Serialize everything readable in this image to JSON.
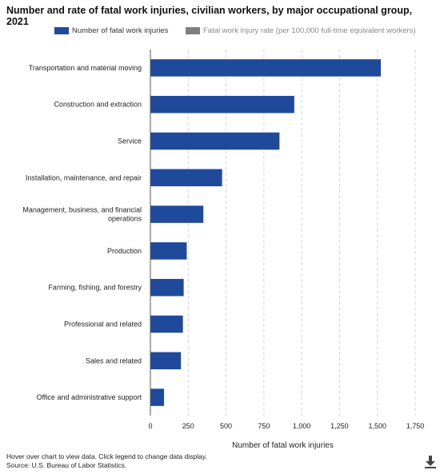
{
  "title": "Number and rate of fatal work injuries, civilian workers, by major occupational group, 2021",
  "legend": [
    {
      "label": "Number of fatal work injuries",
      "color": "#1f4a9c",
      "active": true
    },
    {
      "label": "Fatal work injury rate (per 100,000 full-time equivalent workers)",
      "color": "#7f7f7f",
      "active": false
    }
  ],
  "footer": {
    "note": "Hover over chart to view data. Click legend to change data display.",
    "source": "Source: U.S. Bureau of Labor Statistics."
  },
  "download_icon": "download-icon",
  "chart_data": {
    "type": "bar",
    "orientation": "horizontal",
    "categories": [
      [
        "Transportation and material moving"
      ],
      [
        "Construction and extraction"
      ],
      [
        "Service"
      ],
      [
        "Installation, maintenance, and repair"
      ],
      [
        "Management, business, and financial",
        "operations"
      ],
      [
        "Production"
      ],
      [
        "Farming, fishing, and forestry"
      ],
      [
        "Professional and related"
      ],
      [
        "Sales and related"
      ],
      [
        "Office and administrative support"
      ]
    ],
    "series": [
      {
        "name": "Number of fatal work injuries",
        "color": "#1f4a9c",
        "values": [
          1523,
          951,
          853,
          474,
          350,
          240,
          220,
          215,
          202,
          90
        ]
      }
    ],
    "xlabel": "Number of fatal work injuries",
    "xlim": [
      0,
      1750
    ],
    "xticks": [
      0,
      250,
      500,
      750,
      1000,
      1250,
      1500,
      1750
    ],
    "xtick_labels": [
      "0",
      "250",
      "500",
      "750",
      "1,000",
      "1,250",
      "1,500",
      "1,750"
    ],
    "grid": "vertical-dashed",
    "legend_position": "top"
  }
}
